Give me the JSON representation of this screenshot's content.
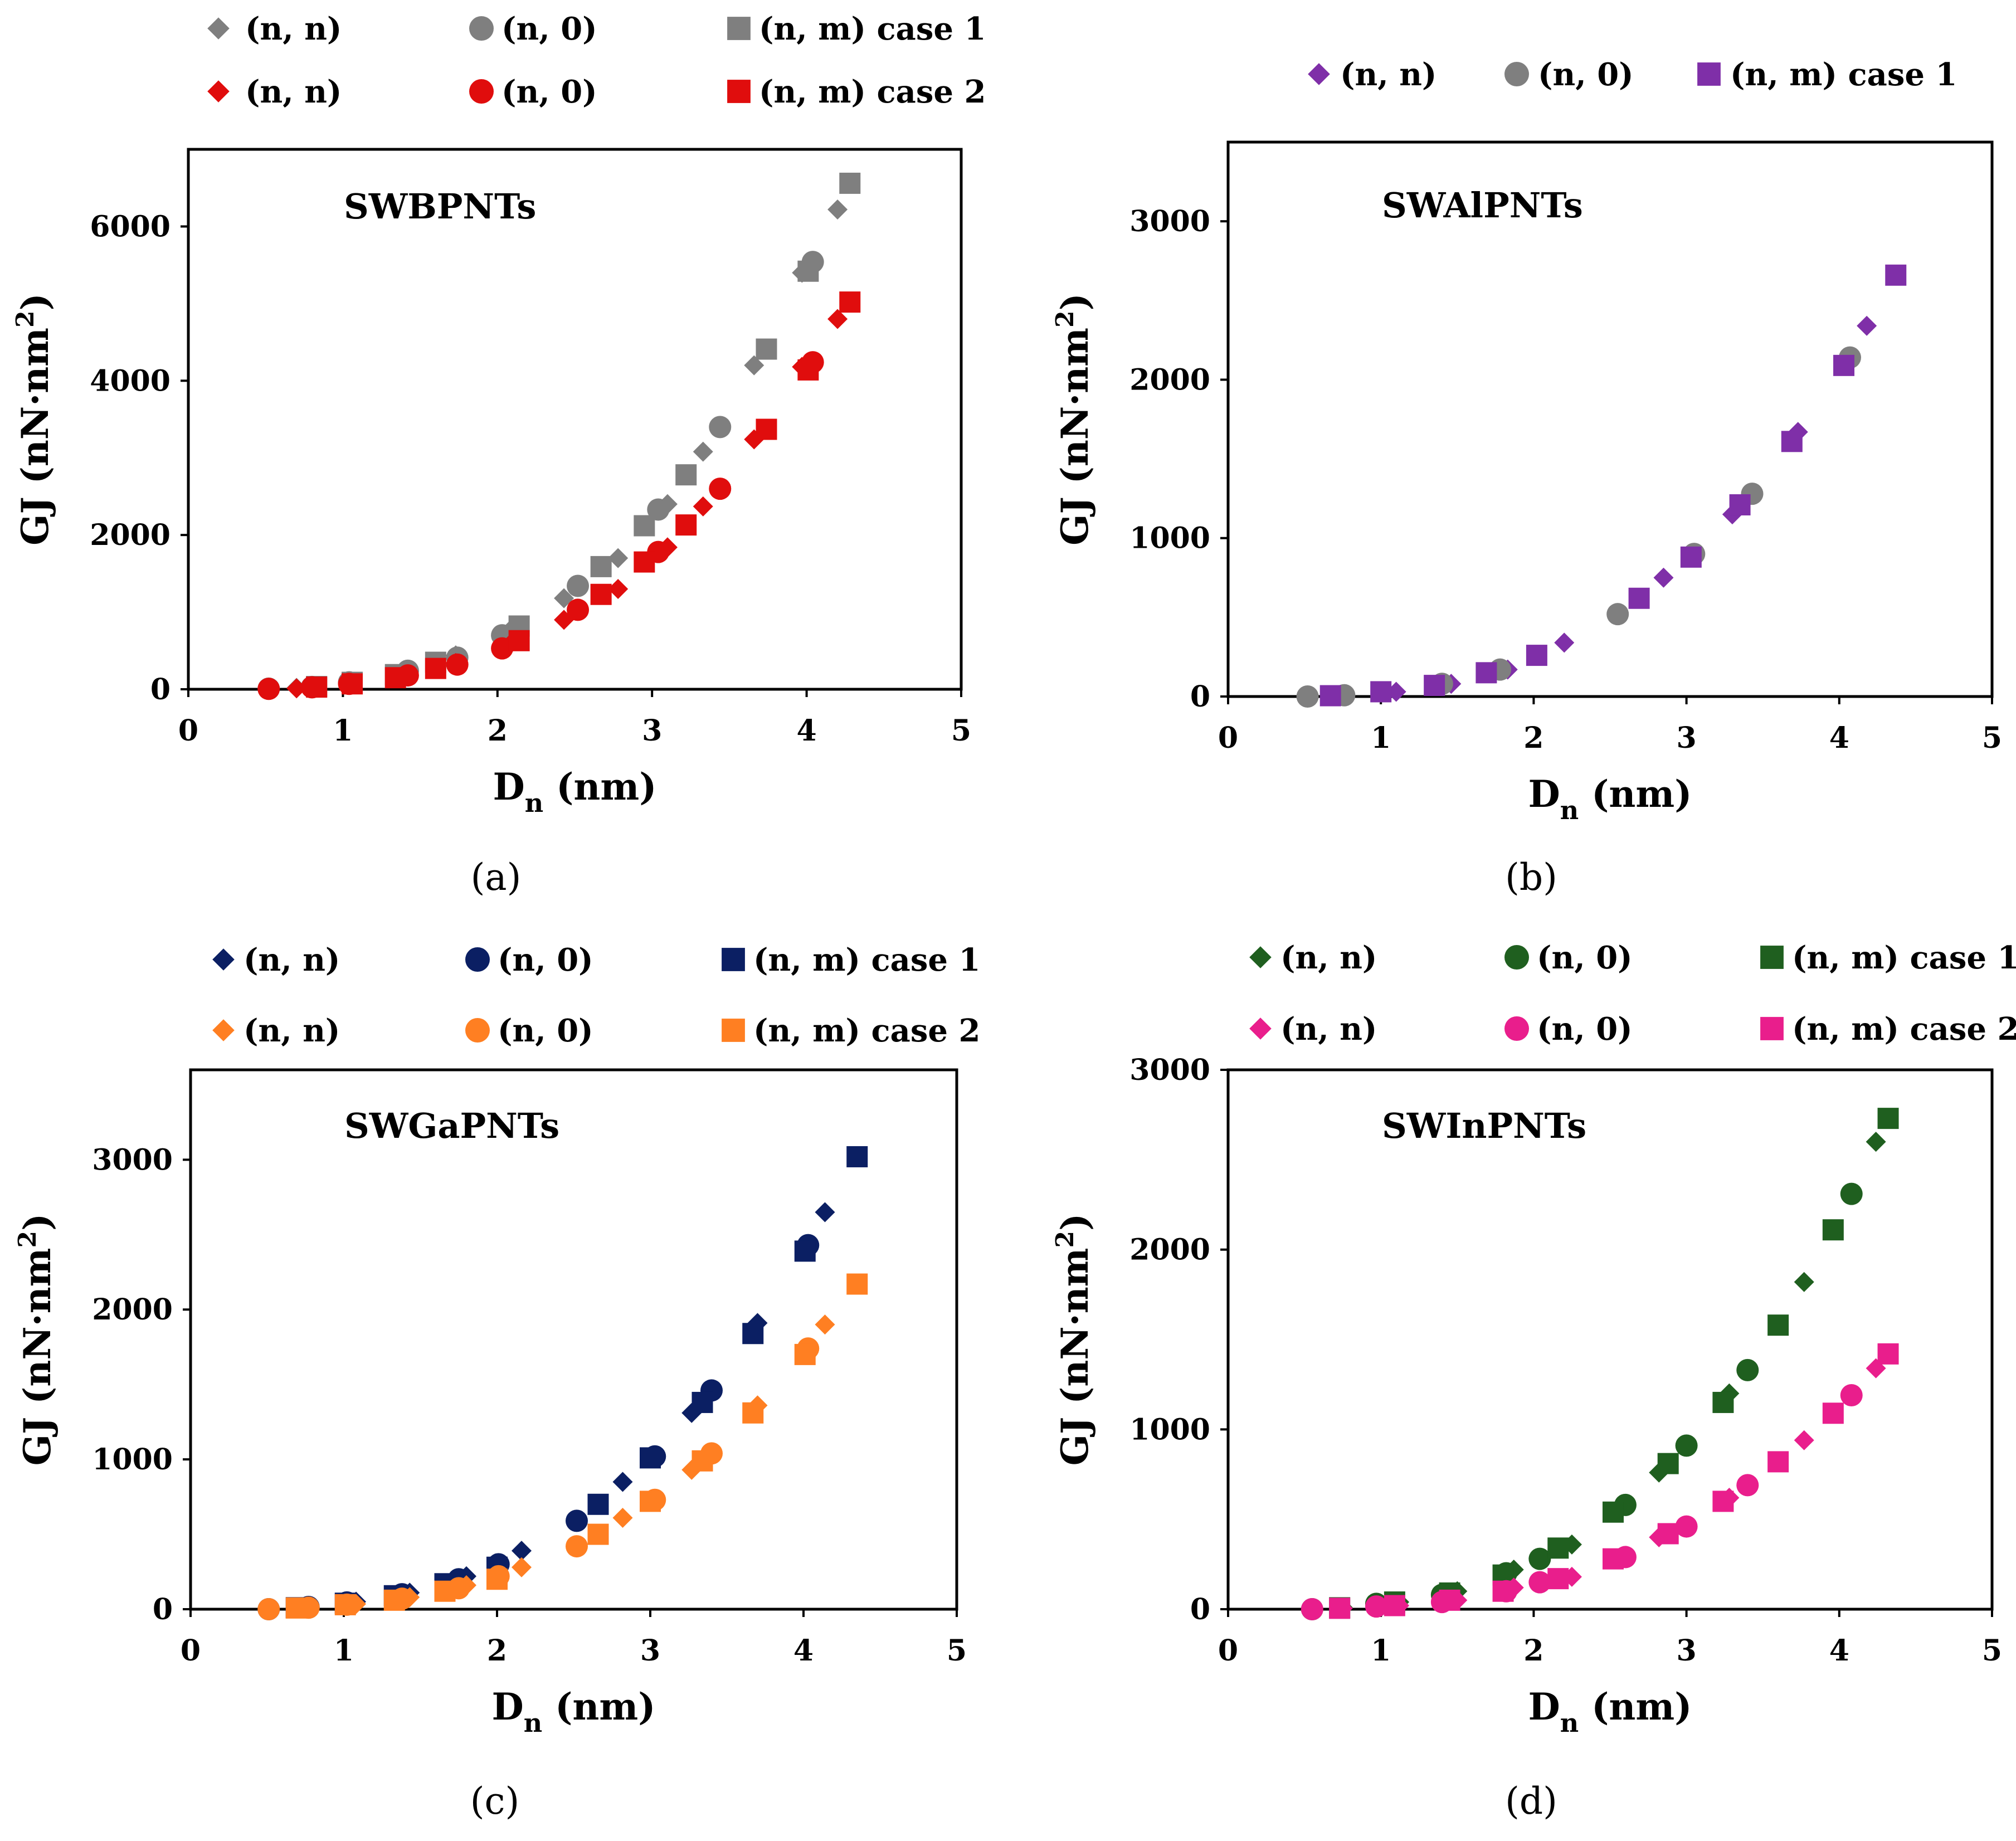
{
  "figure": {
    "captions": [
      "(a)",
      "(b)",
      "(c)",
      "(d)"
    ]
  },
  "chart_data": [
    {
      "type": "scatter",
      "title": "SWBPNTs",
      "caption": "(a)",
      "xlabel_main": "D",
      "xlabel_sub": "n",
      "xlabel_unit": " (nm)",
      "ylabel": "GJ (nN·nm",
      "ylabel_sup": "2",
      "ylabel_close": ")",
      "xlim": [
        0,
        5
      ],
      "ylim": [
        0,
        7000
      ],
      "xticks": [
        0,
        1,
        2,
        3,
        4,
        5
      ],
      "yticks": [
        0,
        2000,
        4000,
        6000
      ],
      "xtick_labels": [
        "0",
        "1",
        "2",
        "3",
        "4",
        "5"
      ],
      "ytick_labels": [
        "0",
        "2000",
        "4000",
        "6000"
      ],
      "series": [
        {
          "name": "(n, n)",
          "color": "#7f7f7f",
          "marker": "diamond",
          "x": [
            0.7,
            1.05,
            1.39,
            1.73,
            2.08,
            2.43,
            2.78,
            3.1,
            3.33,
            3.66,
            3.97,
            4.2
          ],
          "y": [
            18,
            80,
            220,
            440,
            760,
            1180,
            1700,
            2400,
            3080,
            4200,
            5400,
            6220
          ]
        },
        {
          "name": "(n, 0)",
          "color": "#7f7f7f",
          "marker": "circle",
          "x": [
            0.52,
            0.8,
            1.04,
            1.42,
            1.74,
            2.03,
            2.52,
            3.04,
            3.44,
            4.04
          ],
          "y": [
            8,
            30,
            90,
            240,
            410,
            700,
            1340,
            2330,
            3400,
            5540
          ]
        },
        {
          "name": "(n, m) case 1",
          "color": "#7f7f7f",
          "marker": "square",
          "x": [
            0.83,
            1.06,
            1.34,
            1.6,
            2.14,
            2.67,
            2.95,
            3.22,
            3.74,
            4.01,
            4.28
          ],
          "y": [
            35,
            90,
            190,
            350,
            820,
            1590,
            2120,
            2780,
            4410,
            5420,
            6560
          ]
        },
        {
          "name": "(n, n)",
          "color": "#e00d0d",
          "marker": "diamond",
          "x": [
            0.7,
            1.05,
            1.39,
            1.73,
            2.08,
            2.43,
            2.78,
            3.1,
            3.33,
            3.66,
            3.97,
            4.2
          ],
          "y": [
            12,
            60,
            170,
            340,
            580,
            900,
            1300,
            1840,
            2370,
            3240,
            4180,
            4800
          ]
        },
        {
          "name": "(n, 0)",
          "color": "#e00d0d",
          "marker": "circle",
          "x": [
            0.52,
            0.8,
            1.04,
            1.42,
            1.74,
            2.03,
            2.52,
            3.04,
            3.44,
            4.04
          ],
          "y": [
            5,
            25,
            70,
            180,
            320,
            530,
            1030,
            1780,
            2600,
            4240
          ]
        },
        {
          "name": "(n, m) case 2",
          "color": "#e00d0d",
          "marker": "square",
          "x": [
            0.83,
            1.06,
            1.34,
            1.6,
            2.14,
            2.67,
            2.95,
            3.22,
            3.74,
            4.01,
            4.28
          ],
          "y": [
            28,
            70,
            150,
            270,
            630,
            1230,
            1650,
            2130,
            3370,
            4140,
            5020
          ]
        }
      ]
    },
    {
      "type": "scatter",
      "title": "SWAlPNTs",
      "caption": "(b)",
      "xlabel_main": "D",
      "xlabel_sub": "n",
      "xlabel_unit": " (nm)",
      "ylabel": "GJ (nN·nm",
      "ylabel_sup": "2",
      "ylabel_close": ")",
      "xlim": [
        0,
        5
      ],
      "ylim": [
        0,
        3500
      ],
      "xticks": [
        0,
        1,
        2,
        3,
        4,
        5
      ],
      "yticks": [
        0,
        1000,
        2000,
        3000
      ],
      "xtick_labels": [
        "0",
        "1",
        "2",
        "3",
        "4",
        "5"
      ],
      "ytick_labels": [
        "0",
        "1000",
        "2000",
        "3000"
      ],
      "series": [
        {
          "name": "(n, n)",
          "color": "#7f2fa8",
          "marker": "diamond",
          "x": [
            0.73,
            1.1,
            1.46,
            1.83,
            2.2,
            2.85,
            3.3,
            3.73,
            4.18
          ],
          "y": [
            5,
            30,
            80,
            170,
            340,
            750,
            1150,
            1670,
            2340
          ]
        },
        {
          "name": "(n, 0)",
          "color": "#7f7f7f",
          "marker": "circle",
          "x": [
            0.52,
            0.76,
            1.4,
            1.78,
            2.55,
            3.05,
            3.43,
            4.07
          ],
          "y": [
            0,
            8,
            80,
            170,
            520,
            900,
            1280,
            2140
          ]
        },
        {
          "name": "(n, m) case 1",
          "color": "#7f2fa8",
          "marker": "square",
          "x": [
            0.67,
            1.0,
            1.35,
            1.69,
            2.02,
            2.69,
            3.03,
            3.35,
            3.69,
            4.03,
            4.37
          ],
          "y": [
            5,
            30,
            70,
            150,
            260,
            620,
            880,
            1210,
            1610,
            2090,
            2660
          ]
        }
      ]
    },
    {
      "type": "scatter",
      "title": "SWGaPNTs",
      "caption": "(c)",
      "xlabel_main": "D",
      "xlabel_sub": "n",
      "xlabel_unit": " (nm)",
      "ylabel": "GJ (nN·nm",
      "ylabel_sup": "2",
      "ylabel_close": ")",
      "xlim": [
        0,
        5
      ],
      "ylim": [
        0,
        3600
      ],
      "xticks": [
        0,
        1,
        2,
        3,
        4,
        5
      ],
      "yticks": [
        0,
        1000,
        2000,
        3000
      ],
      "xtick_labels": [
        "0",
        "1",
        "2",
        "3",
        "4",
        "5"
      ],
      "ytick_labels": [
        "0",
        "1000",
        "2000",
        "3000"
      ],
      "series": [
        {
          "name": "(n, n)",
          "color": "#0b1f63",
          "marker": "diamond",
          "x": [
            0.72,
            1.08,
            1.43,
            1.8,
            2.16,
            2.82,
            3.27,
            3.7,
            4.14
          ],
          "y": [
            8,
            50,
            110,
            220,
            390,
            850,
            1310,
            1910,
            2650
          ]
        },
        {
          "name": "(n, 0)",
          "color": "#0b1f63",
          "marker": "circle",
          "x": [
            0.51,
            0.77,
            1.02,
            1.38,
            1.75,
            2.01,
            2.52,
            3.03,
            3.4,
            4.03
          ],
          "y": [
            0,
            15,
            45,
            100,
            200,
            300,
            590,
            1020,
            1460,
            2430
          ]
        },
        {
          "name": "(n, m) case 1",
          "color": "#0b1f63",
          "marker": "square",
          "x": [
            0.69,
            1.01,
            1.33,
            1.66,
            2.0,
            2.66,
            3.0,
            3.34,
            3.67,
            4.01,
            4.35
          ],
          "y": [
            10,
            40,
            90,
            170,
            280,
            700,
            1010,
            1380,
            1840,
            2390,
            3020
          ]
        },
        {
          "name": "(n, n)",
          "color": "#ff7f22",
          "marker": "diamond",
          "x": [
            0.72,
            1.08,
            1.43,
            1.8,
            2.16,
            2.82,
            3.27,
            3.7,
            4.14
          ],
          "y": [
            5,
            35,
            80,
            160,
            280,
            610,
            930,
            1360,
            1900
          ]
        },
        {
          "name": "(n, 0)",
          "color": "#ff7f22",
          "marker": "circle",
          "x": [
            0.51,
            0.77,
            1.02,
            1.38,
            1.75,
            2.01,
            2.52,
            3.03,
            3.4,
            4.03
          ],
          "y": [
            0,
            10,
            30,
            70,
            140,
            220,
            420,
            730,
            1040,
            1740
          ]
        },
        {
          "name": "(n, m) case 2",
          "color": "#ff7f22",
          "marker": "square",
          "x": [
            0.69,
            1.01,
            1.33,
            1.66,
            2.0,
            2.66,
            3.0,
            3.34,
            3.67,
            4.01,
            4.35
          ],
          "y": [
            8,
            30,
            60,
            120,
            200,
            500,
            720,
            990,
            1310,
            1700,
            2170
          ]
        }
      ]
    },
    {
      "type": "scatter",
      "title": "SWInPNTs",
      "caption": "(d)",
      "xlabel_main": "D",
      "xlabel_sub": "n",
      "xlabel_unit": " (nm)",
      "ylabel": "GJ (nN·nm",
      "ylabel_sup": "2",
      "ylabel_close": ")",
      "xlim": [
        0,
        5
      ],
      "ylim": [
        0,
        3000
      ],
      "xticks": [
        0,
        1,
        2,
        3,
        4,
        5
      ],
      "yticks": [
        0,
        1000,
        2000,
        3000
      ],
      "xtick_labels": [
        "0",
        "1",
        "2",
        "3",
        "4",
        "5"
      ],
      "ytick_labels": [
        "0",
        "1000",
        "2000",
        "3000"
      ],
      "series": [
        {
          "name": "(n, n)",
          "color": "#1f5f1f",
          "marker": "diamond",
          "x": [
            0.75,
            1.12,
            1.5,
            1.87,
            2.25,
            2.82,
            3.28,
            3.77,
            4.24
          ],
          "y": [
            10,
            40,
            100,
            220,
            360,
            760,
            1200,
            1820,
            2600
          ]
        },
        {
          "name": "(n, 0)",
          "color": "#1f5f1f",
          "marker": "circle",
          "x": [
            0.55,
            0.97,
            1.4,
            1.82,
            2.04,
            2.6,
            3.0,
            3.4,
            4.08
          ],
          "y": [
            0,
            30,
            80,
            200,
            280,
            580,
            910,
            1330,
            2310
          ]
        },
        {
          "name": "(n, m) case 1",
          "color": "#1f5f1f",
          "marker": "square",
          "x": [
            0.73,
            1.09,
            1.45,
            1.8,
            2.16,
            2.52,
            2.88,
            3.24,
            3.6,
            3.96,
            4.32
          ],
          "y": [
            8,
            40,
            90,
            190,
            340,
            540,
            810,
            1150,
            1580,
            2110,
            2730
          ]
        },
        {
          "name": "(n, n)",
          "color": "#e91e8c",
          "marker": "diamond",
          "x": [
            0.75,
            1.12,
            1.5,
            1.87,
            2.25,
            2.82,
            3.28,
            3.77,
            4.24
          ],
          "y": [
            5,
            20,
            50,
            120,
            180,
            400,
            620,
            940,
            1340
          ]
        },
        {
          "name": "(n, 0)",
          "color": "#e91e8c",
          "marker": "circle",
          "x": [
            0.55,
            0.97,
            1.4,
            1.82,
            2.04,
            2.6,
            3.0,
            3.4,
            4.08
          ],
          "y": [
            0,
            15,
            40,
            100,
            150,
            290,
            460,
            690,
            1190
          ]
        },
        {
          "name": "(n, m) case 2",
          "color": "#e91e8c",
          "marker": "square",
          "x": [
            0.73,
            1.09,
            1.45,
            1.8,
            2.16,
            2.52,
            2.88,
            3.24,
            3.6,
            3.96,
            4.32
          ],
          "y": [
            5,
            20,
            50,
            100,
            170,
            280,
            420,
            600,
            820,
            1090,
            1420
          ]
        }
      ]
    }
  ]
}
